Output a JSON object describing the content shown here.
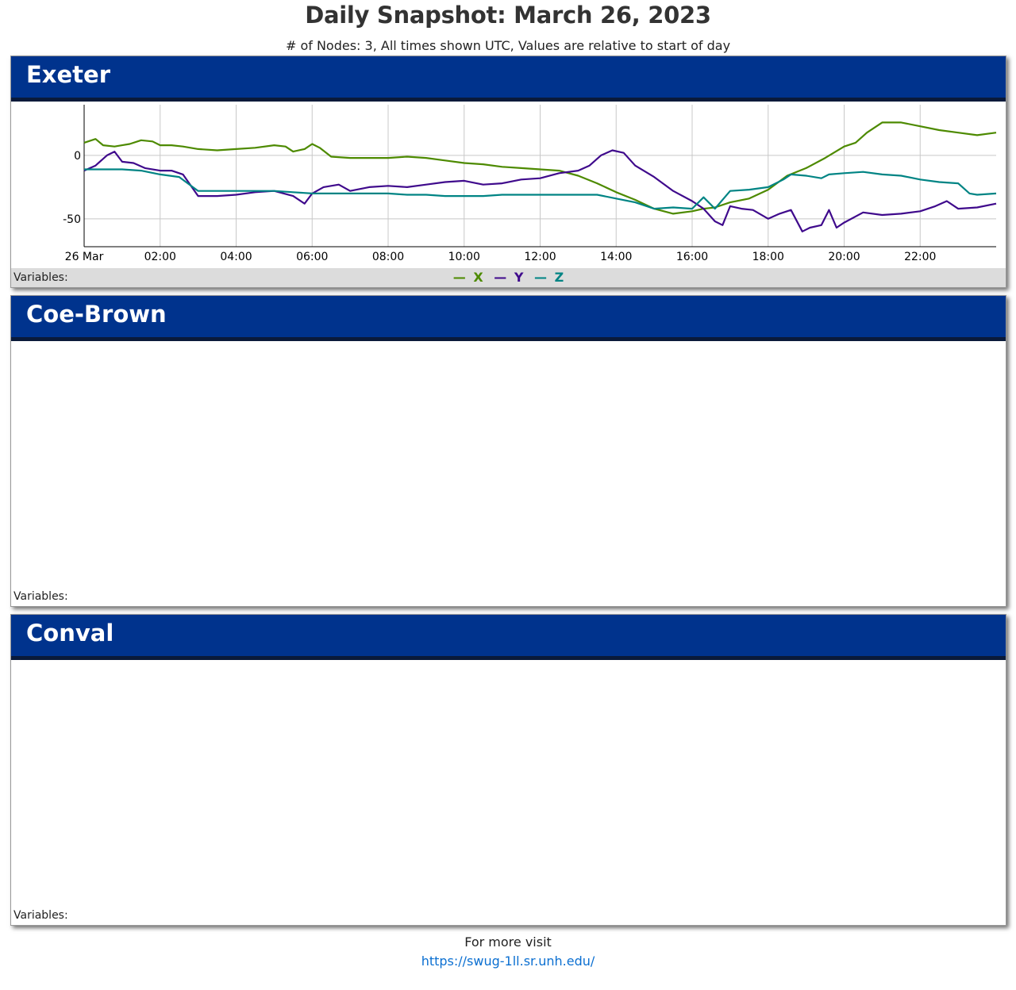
{
  "page": {
    "title": "Daily Snapshot: March 26, 2023",
    "subtitle": "# of Nodes: 3, All times shown UTC, Values are relative to start of day"
  },
  "panels": [
    {
      "name": "Exeter",
      "variables_label": "Variables:"
    },
    {
      "name": "Coe-Brown",
      "variables_label": "Variables:"
    },
    {
      "name": "Conval",
      "variables_label": "Variables:"
    }
  ],
  "legend": [
    {
      "symbol": "—",
      "name": "X",
      "color": "#4d8a00"
    },
    {
      "symbol": "—",
      "name": "Y",
      "color": "#3f0a8c"
    },
    {
      "symbol": "—",
      "name": "Z",
      "color": "#008484"
    }
  ],
  "footer": {
    "text": "For more visit",
    "link": "https://swug-1ll.sr.unh.edu/"
  },
  "chart_data": {
    "type": "line",
    "x_unit": "hour (UTC), 26 Mar 2023",
    "x_ticks": [
      {
        "x": 0,
        "label": "26 Mar"
      },
      {
        "x": 2,
        "label": "02:00"
      },
      {
        "x": 4,
        "label": "04:00"
      },
      {
        "x": 6,
        "label": "06:00"
      },
      {
        "x": 8,
        "label": "08:00"
      },
      {
        "x": 10,
        "label": "10:00"
      },
      {
        "x": 12,
        "label": "12:00"
      },
      {
        "x": 14,
        "label": "14:00"
      },
      {
        "x": 16,
        "label": "16:00"
      },
      {
        "x": 18,
        "label": "18:00"
      },
      {
        "x": 20,
        "label": "20:00"
      },
      {
        "x": 22,
        "label": "22:00"
      }
    ],
    "y_ticks": [
      {
        "y": 0,
        "label": "0"
      },
      {
        "y": -50,
        "label": "-50"
      }
    ],
    "xlim": [
      0,
      24
    ],
    "ylim": [
      -72,
      40
    ],
    "grid": true,
    "series": [
      {
        "name": "X",
        "color": "#4d8a00",
        "x": [
          0,
          0.3,
          0.5,
          0.8,
          1.0,
          1.2,
          1.5,
          1.8,
          2.0,
          2.3,
          2.6,
          3.0,
          3.5,
          4.0,
          4.5,
          5.0,
          5.3,
          5.5,
          5.8,
          6.0,
          6.2,
          6.5,
          7.0,
          7.5,
          8.0,
          8.5,
          9.0,
          9.5,
          10.0,
          10.5,
          11.0,
          11.5,
          12.0,
          12.5,
          13.0,
          13.5,
          14.0,
          14.5,
          15.0,
          15.5,
          16.0,
          16.3,
          16.6,
          17.0,
          17.5,
          18.0,
          18.5,
          19.0,
          19.5,
          20.0,
          20.3,
          20.6,
          21.0,
          21.5,
          22.0,
          22.5,
          23.0,
          23.5,
          24.0
        ],
        "y": [
          10,
          13,
          8,
          7,
          8,
          9,
          12,
          11,
          8,
          8,
          7,
          5,
          4,
          5,
          6,
          8,
          7,
          3,
          5,
          9,
          6,
          -1,
          -2,
          -2,
          -2,
          -1,
          -2,
          -4,
          -6,
          -7,
          -9,
          -10,
          -11,
          -12,
          -16,
          -22,
          -29,
          -35,
          -42,
          -46,
          -44,
          -42,
          -41,
          -37,
          -34,
          -27,
          -16,
          -10,
          -2,
          7,
          10,
          18,
          26,
          26,
          23,
          20,
          18,
          16,
          18
        ]
      },
      {
        "name": "Y",
        "color": "#3f0a8c",
        "x": [
          0,
          0.3,
          0.6,
          0.8,
          1.0,
          1.3,
          1.6,
          2.0,
          2.3,
          2.6,
          3.0,
          3.5,
          4.0,
          4.5,
          5.0,
          5.5,
          5.8,
          6.0,
          6.3,
          6.7,
          7.0,
          7.5,
          8.0,
          8.5,
          9.0,
          9.5,
          10.0,
          10.5,
          11.0,
          11.5,
          12.0,
          12.5,
          13.0,
          13.3,
          13.6,
          13.9,
          14.2,
          14.5,
          15.0,
          15.5,
          16.0,
          16.3,
          16.6,
          16.8,
          17.0,
          17.3,
          17.6,
          18.0,
          18.3,
          18.6,
          18.9,
          19.1,
          19.4,
          19.6,
          19.8,
          20.0,
          20.5,
          21.0,
          21.5,
          22.0,
          22.4,
          22.7,
          23.0,
          23.5,
          24.0
        ],
        "y": [
          -12,
          -8,
          0,
          3,
          -5,
          -6,
          -10,
          -12,
          -12,
          -15,
          -32,
          -32,
          -31,
          -29,
          -28,
          -32,
          -38,
          -30,
          -25,
          -23,
          -28,
          -25,
          -24,
          -25,
          -23,
          -21,
          -20,
          -23,
          -22,
          -19,
          -18,
          -14,
          -12,
          -8,
          0,
          4,
          2,
          -8,
          -17,
          -28,
          -36,
          -42,
          -52,
          -55,
          -40,
          -42,
          -43,
          -50,
          -46,
          -43,
          -60,
          -57,
          -55,
          -43,
          -57,
          -53,
          -45,
          -47,
          -46,
          -44,
          -40,
          -36,
          -42,
          -41,
          -38
        ]
      },
      {
        "name": "Z",
        "color": "#008484",
        "x": [
          0,
          0.5,
          1.0,
          1.5,
          2.0,
          2.5,
          3.0,
          3.5,
          4.0,
          4.5,
          5.0,
          5.5,
          6.0,
          6.5,
          7.0,
          7.5,
          8.0,
          8.5,
          9.0,
          9.5,
          10.0,
          10.5,
          11.0,
          11.5,
          12.0,
          12.5,
          13.0,
          13.5,
          14.0,
          14.5,
          15.0,
          15.5,
          16.0,
          16.3,
          16.6,
          17.0,
          17.5,
          18.0,
          18.4,
          18.6,
          19.0,
          19.4,
          19.6,
          20.0,
          20.5,
          21.0,
          21.5,
          22.0,
          22.5,
          23.0,
          23.3,
          23.5,
          24.0
        ],
        "y": [
          -11,
          -11,
          -11,
          -12,
          -15,
          -17,
          -28,
          -28,
          -28,
          -28,
          -28,
          -29,
          -30,
          -30,
          -30,
          -30,
          -30,
          -31,
          -31,
          -32,
          -32,
          -32,
          -31,
          -31,
          -31,
          -31,
          -31,
          -31,
          -34,
          -37,
          -42,
          -41,
          -42,
          -33,
          -42,
          -28,
          -27,
          -25,
          -19,
          -15,
          -16,
          -18,
          -15,
          -14,
          -13,
          -15,
          -16,
          -19,
          -21,
          -22,
          -30,
          -31,
          -30
        ]
      }
    ]
  }
}
